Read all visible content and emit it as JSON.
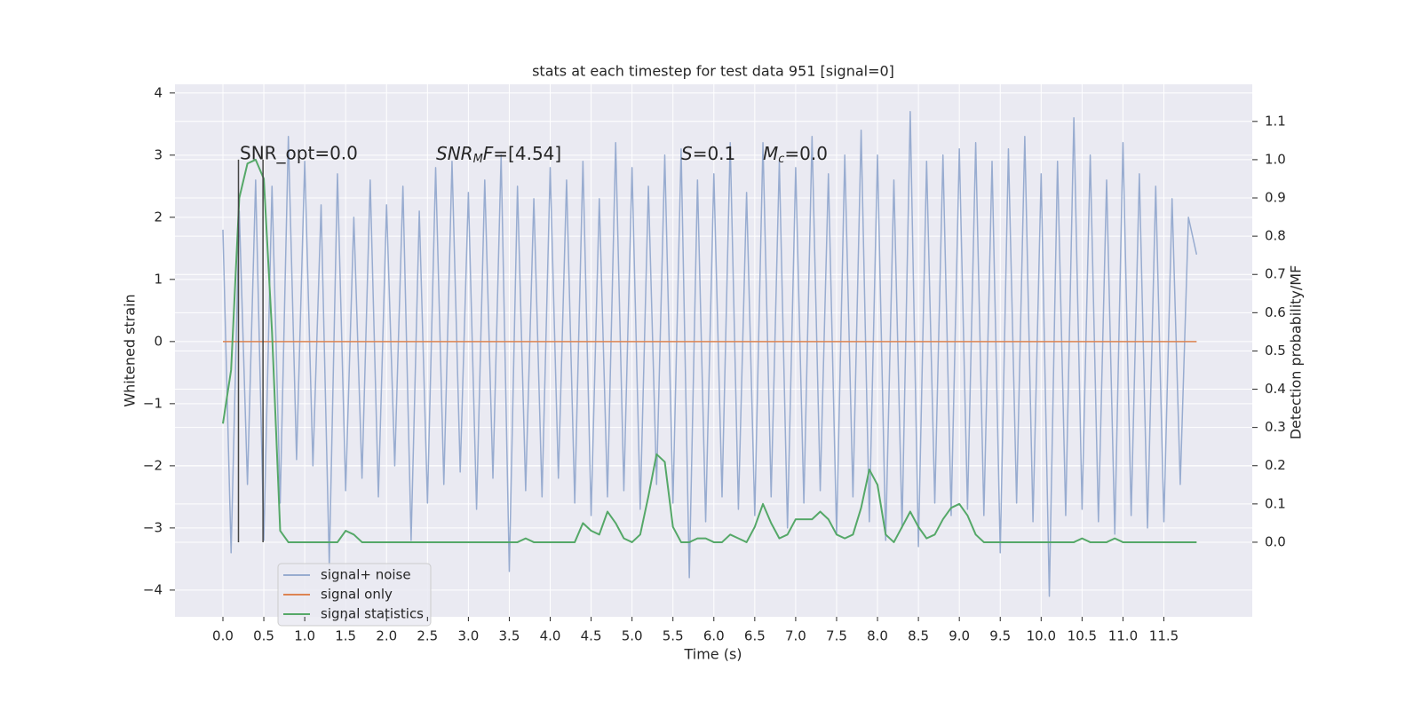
{
  "chart_data": {
    "type": "line",
    "title": "stats at each timestep for test data 951 [signal=0]",
    "x_label": "Time (s)",
    "y_label": "Whitened strain",
    "y2_label": "Detection probability/MF",
    "annotations": [
      [
        "SNR_opt=0.0"
      ],
      [
        "SNR",
        "M",
        "F",
        "=[4.54]"
      ],
      [
        "S",
        "=0.1"
      ],
      [
        "M",
        "c",
        "=0.0"
      ]
    ],
    "x": [
      0,
      0.1,
      0.2,
      0.3,
      0.4,
      0.5,
      0.6,
      0.7,
      0.8,
      0.9,
      1,
      1.1,
      1.2,
      1.3,
      1.4,
      1.5,
      1.6,
      1.7,
      1.8,
      1.9,
      2,
      2.1,
      2.2,
      2.3,
      2.4,
      2.5,
      2.6,
      2.7,
      2.8,
      2.9,
      3,
      3.1,
      3.2,
      3.3,
      3.4,
      3.5,
      3.6,
      3.7,
      3.8,
      3.9,
      4,
      4.1,
      4.2,
      4.3,
      4.4,
      4.5,
      4.6,
      4.7,
      4.8,
      4.9,
      5,
      5.1,
      5.2,
      5.3,
      5.4,
      5.5,
      5.6,
      5.7,
      5.8,
      5.9,
      6,
      6.1,
      6.2,
      6.3,
      6.4,
      6.5,
      6.6,
      6.7,
      6.8,
      6.9,
      7,
      7.1,
      7.2,
      7.3,
      7.4,
      7.5,
      7.6,
      7.7,
      7.8,
      7.9,
      8,
      8.1,
      8.2,
      8.3,
      8.4,
      8.5,
      8.6,
      8.7,
      8.8,
      8.9,
      9,
      9.1,
      9.2,
      9.3,
      9.4,
      9.5,
      9.6,
      9.7,
      9.8,
      9.9,
      10,
      10.1,
      10.2,
      10.3,
      10.4,
      10.5,
      10.6,
      10.7,
      10.8,
      10.9,
      11,
      11.1,
      11.2,
      11.3,
      11.4,
      11.5,
      11.6,
      11.7,
      11.8,
      11.9
    ],
    "series": [
      {
        "name": "signal+ noise",
        "color": "#98acd0",
        "values": [
          1.8,
          -3.4,
          2.1,
          -2.3,
          2.6,
          -3.2,
          2.5,
          -2.6,
          3.3,
          -1.9,
          2.9,
          -2.0,
          2.2,
          -3.6,
          2.7,
          -2.4,
          2.0,
          -2.2,
          2.6,
          -2.5,
          2.2,
          -2.0,
          2.5,
          -3.2,
          2.1,
          -2.6,
          2.8,
          -2.3,
          2.9,
          -2.1,
          2.4,
          -2.7,
          2.6,
          -2.2,
          3.0,
          -3.7,
          2.5,
          -2.4,
          2.3,
          -2.5,
          2.8,
          -2.2,
          2.6,
          -2.6,
          2.9,
          -2.8,
          2.3,
          -2.5,
          3.2,
          -2.4,
          2.8,
          -2.7,
          2.5,
          -2.3,
          3.0,
          -2.6,
          3.1,
          -3.8,
          2.6,
          -2.9,
          2.7,
          -2.5,
          3.2,
          -2.7,
          2.4,
          -2.8,
          3.2,
          -2.5,
          2.9,
          -3.0,
          2.8,
          -2.6,
          3.3,
          -2.4,
          2.7,
          -3.1,
          3.0,
          -2.5,
          3.4,
          -2.9,
          3.0,
          -3.2,
          2.6,
          -3.0,
          3.7,
          -3.3,
          2.9,
          -2.6,
          3.0,
          -2.8,
          3.1,
          -2.7,
          3.2,
          -2.8,
          2.9,
          -3.4,
          3.1,
          -2.6,
          3.3,
          -2.9,
          2.7,
          -4.1,
          2.9,
          -2.8,
          3.6,
          -2.7,
          3.0,
          -2.9,
          2.6,
          -3.1,
          3.2,
          -2.8,
          2.7,
          -3.0,
          2.5,
          -2.9,
          2.3,
          -2.3,
          2.0,
          1.4
        ]
      },
      {
        "name": "signal only",
        "color": "#dd8452",
        "values": [
          0,
          0,
          0,
          0,
          0,
          0,
          0,
          0,
          0,
          0,
          0,
          0,
          0,
          0,
          0,
          0,
          0,
          0,
          0,
          0,
          0,
          0,
          0,
          0,
          0,
          0,
          0,
          0,
          0,
          0,
          0,
          0,
          0,
          0,
          0,
          0,
          0,
          0,
          0,
          0,
          0,
          0,
          0,
          0,
          0,
          0,
          0,
          0,
          0,
          0,
          0,
          0,
          0,
          0,
          0,
          0,
          0,
          0,
          0,
          0,
          0,
          0,
          0,
          0,
          0,
          0,
          0,
          0,
          0,
          0,
          0,
          0,
          0,
          0,
          0,
          0,
          0,
          0,
          0,
          0,
          0,
          0,
          0,
          0,
          0,
          0,
          0,
          0,
          0,
          0,
          0,
          0,
          0,
          0,
          0,
          0,
          0,
          0,
          0,
          0,
          0,
          0,
          0,
          0,
          0,
          0,
          0,
          0,
          0,
          0,
          0,
          0,
          0,
          0,
          0,
          0,
          0,
          0,
          0,
          0
        ]
      },
      {
        "name": "signal statistics",
        "color": "#55a868",
        "axis": "y2",
        "values": [
          0.31,
          0.45,
          0.9,
          0.99,
          1.0,
          0.95,
          0.55,
          0.03,
          0,
          0,
          0,
          0,
          0,
          0,
          0,
          0.03,
          0.02,
          0,
          0,
          0,
          0,
          0,
          0,
          0,
          0,
          0,
          0,
          0,
          0,
          0,
          0,
          0,
          0,
          0,
          0,
          0,
          0,
          0.01,
          0,
          0,
          0,
          0,
          0,
          0,
          0.05,
          0.03,
          0.02,
          0.08,
          0.05,
          0.01,
          0,
          0.02,
          0.12,
          0.23,
          0.21,
          0.04,
          0,
          0,
          0.01,
          0.01,
          0,
          0,
          0.02,
          0.01,
          0,
          0.04,
          0.1,
          0.05,
          0.01,
          0.02,
          0.06,
          0.06,
          0.06,
          0.08,
          0.06,
          0.02,
          0.01,
          0.02,
          0.09,
          0.19,
          0.15,
          0.02,
          0,
          0.04,
          0.08,
          0.04,
          0.01,
          0.02,
          0.06,
          0.09,
          0.1,
          0.07,
          0.02,
          0,
          0,
          0,
          0,
          0,
          0,
          0,
          0,
          0,
          0,
          0,
          0,
          0.01,
          0,
          0,
          0,
          0.01,
          0,
          0,
          0,
          0,
          0,
          0,
          0,
          0,
          0,
          0
        ]
      }
    ],
    "vlines": [
      0.19,
      0.49
    ],
    "vline_color": "#444444",
    "vline_span": [
      0,
      1
    ],
    "xlim": [
      -0.586,
      12.58
    ],
    "xticks": [
      {
        "value": 0,
        "label": "0.0"
      },
      0.5,
      {
        "value": 1,
        "label": "1.0"
      },
      1.5,
      {
        "value": 2,
        "label": "2.0"
      },
      2.5,
      {
        "value": 3,
        "label": "3.0"
      },
      3.5,
      {
        "value": 4,
        "label": "4.0"
      },
      4.5,
      {
        "value": 5,
        "label": "5.0"
      },
      5.5,
      {
        "value": 6,
        "label": "6.0"
      },
      6.5,
      {
        "value": 7,
        "label": "7.0"
      },
      7.5,
      {
        "value": 8,
        "label": "8.0"
      },
      8.5,
      {
        "value": 9,
        "label": "9.0"
      },
      9.5,
      {
        "value": 10,
        "label": "10.0"
      },
      10.5,
      {
        "value": 11,
        "label": "11.0"
      },
      11.5
    ],
    "ylim": [
      -4.43,
      4.14
    ],
    "yticks": [
      {
        "value": -4,
        "label": "−4"
      },
      {
        "value": -3,
        "label": "−3"
      },
      {
        "value": -2,
        "label": "−2"
      },
      {
        "value": -1,
        "label": "−1"
      },
      0,
      1,
      2,
      3,
      4
    ],
    "y2lim": [
      -0.195,
      1.197
    ],
    "y2ticks": [
      {
        "value": 0,
        "label": "0.0"
      },
      0.1,
      0.2,
      0.3,
      0.4,
      0.5,
      0.6,
      0.7,
      0.8,
      0.9,
      {
        "value": 1,
        "label": "1.0"
      },
      1.1
    ],
    "grid": true,
    "legend": "lower left",
    "background": "#eaeaf2"
  }
}
